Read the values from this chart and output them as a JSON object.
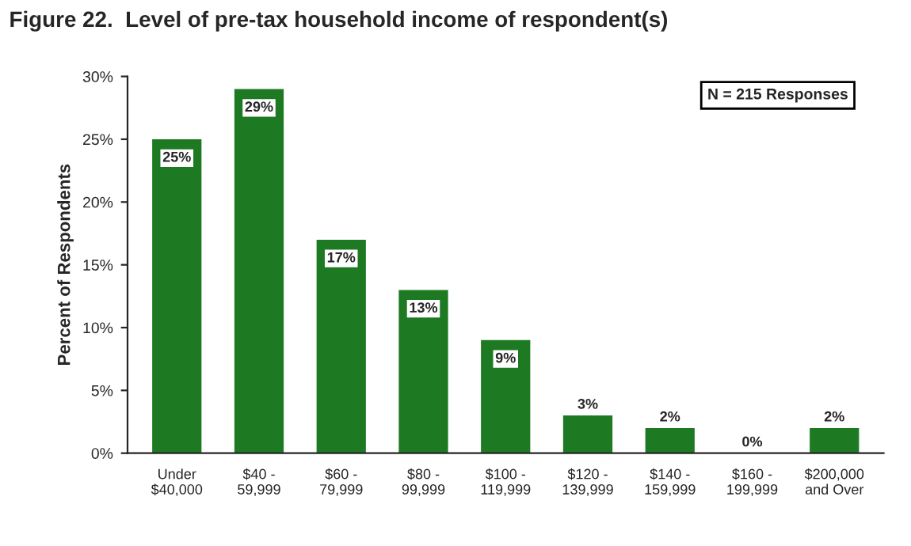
{
  "chart_data": {
    "type": "bar",
    "title": "Figure 22.  Level of pre-tax household income of respondent(s)",
    "ylabel": "Percent of Respondents",
    "categories": [
      "Under\n$40,000",
      "$40 -\n59,999",
      "$60 -\n79,999",
      "$80 -\n99,999",
      "$100 -\n119,999",
      "$120 -\n139,999",
      "$140 -\n159,999",
      "$160 -\n199,999",
      "$200,000\nand Over"
    ],
    "values": [
      25,
      29,
      17,
      13,
      9,
      3,
      2,
      0,
      2
    ],
    "value_labels": [
      "25%",
      "29%",
      "17%",
      "13%",
      "9%",
      "3%",
      "2%",
      "0%",
      "2%"
    ],
    "color": "#1e7a22",
    "ylim": [
      0,
      30
    ],
    "yticks": [
      {
        "value": 0,
        "label": "0%"
      },
      {
        "value": 5,
        "label": "5%"
      },
      {
        "value": 10,
        "label": "10%"
      },
      {
        "value": 15,
        "label": "15%"
      },
      {
        "value": 20,
        "label": "20%"
      },
      {
        "value": 25,
        "label": "25%"
      },
      {
        "value": 30,
        "label": "30%"
      }
    ],
    "annotations": [
      "N = 215 Responses"
    ],
    "grid": false,
    "legend": false
  }
}
